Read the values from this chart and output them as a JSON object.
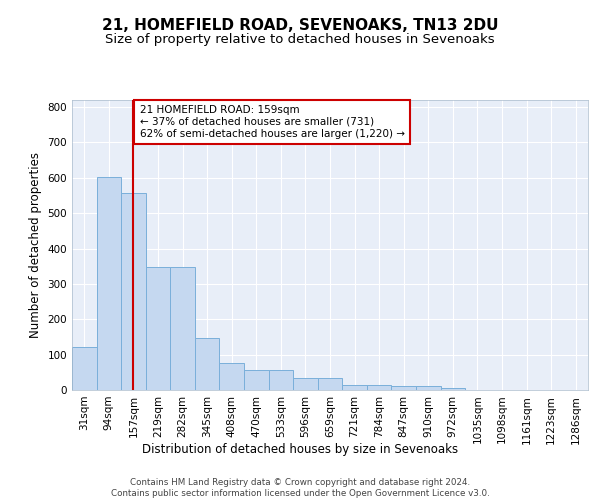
{
  "title": "21, HOMEFIELD ROAD, SEVENOAKS, TN13 2DU",
  "subtitle": "Size of property relative to detached houses in Sevenoaks",
  "xlabel": "Distribution of detached houses by size in Sevenoaks",
  "ylabel": "Number of detached properties",
  "footer1": "Contains HM Land Registry data © Crown copyright and database right 2024.",
  "footer2": "Contains public sector information licensed under the Open Government Licence v3.0.",
  "annotation_line1": "21 HOMEFIELD ROAD: 159sqm",
  "annotation_line2": "← 37% of detached houses are smaller (731)",
  "annotation_line3": "62% of semi-detached houses are larger (1,220) →",
  "bar_values": [
    122,
    601,
    556,
    348,
    348,
    148,
    75,
    57,
    57,
    35,
    35,
    14,
    14,
    10,
    10,
    6,
    0,
    0,
    0,
    0,
    0
  ],
  "bar_labels": [
    "31sqm",
    "94sqm",
    "157sqm",
    "219sqm",
    "282sqm",
    "345sqm",
    "408sqm",
    "470sqm",
    "533sqm",
    "596sqm",
    "659sqm",
    "721sqm",
    "784sqm",
    "847sqm",
    "910sqm",
    "972sqm",
    "1035sqm",
    "1098sqm",
    "1161sqm",
    "1223sqm",
    "1286sqm"
  ],
  "bar_color": "#c5d8f0",
  "bar_edge_color": "#7aafda",
  "vline_x_idx": 2,
  "vline_color": "#cc0000",
  "annotation_box_edge": "#cc0000",
  "background_color": "#e8eef8",
  "ylim": [
    0,
    820
  ],
  "yticks": [
    0,
    100,
    200,
    300,
    400,
    500,
    600,
    700,
    800
  ],
  "grid_color": "#ffffff",
  "title_fontsize": 11,
  "subtitle_fontsize": 9.5,
  "axis_label_fontsize": 8.5,
  "tick_fontsize": 7.5
}
